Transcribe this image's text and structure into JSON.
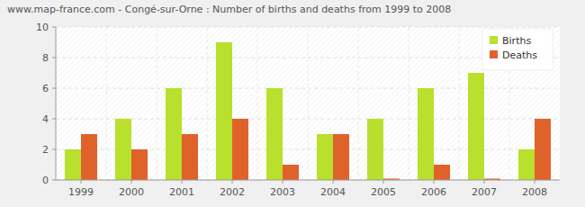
{
  "chart_data": {
    "type": "bar",
    "title": "www.map-france.com - Congé-sur-Orne : Number of births and deaths from 1999 to 2008",
    "categories": [
      "1999",
      "2000",
      "2001",
      "2002",
      "2003",
      "2004",
      "2005",
      "2006",
      "2007",
      "2008"
    ],
    "series": [
      {
        "name": "Births",
        "color": "#b8e02c",
        "values": [
          2,
          4,
          6,
          9,
          6,
          3,
          4,
          6,
          7,
          2
        ]
      },
      {
        "name": "Deaths",
        "color": "#e0622b",
        "values": [
          3,
          2,
          3,
          4,
          1,
          3,
          0,
          1,
          0,
          4
        ]
      }
    ],
    "ylim": [
      0,
      10
    ],
    "yticks": [
      0,
      2,
      4,
      6,
      8,
      10
    ],
    "grid": true,
    "legend": "top-right"
  }
}
